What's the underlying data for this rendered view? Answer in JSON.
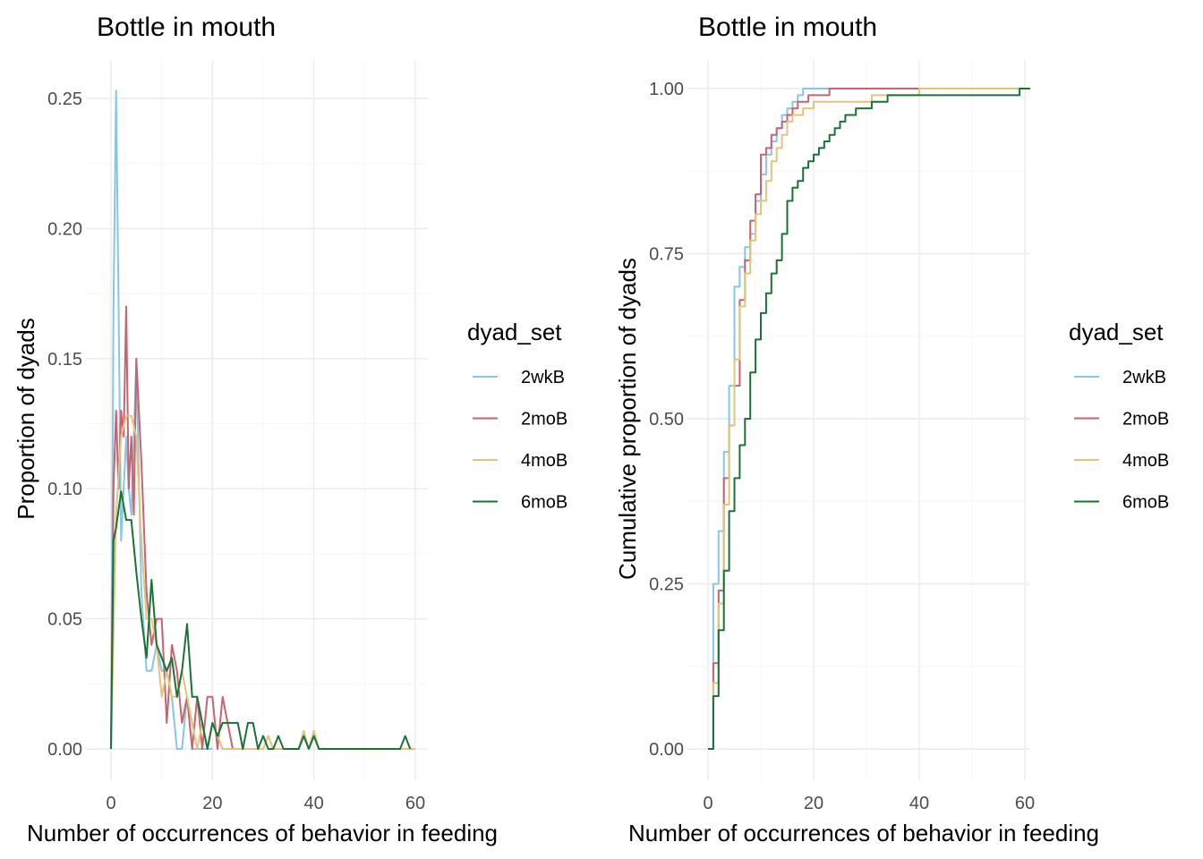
{
  "chart_data": [
    {
      "type": "line",
      "title": "Bottle in mouth",
      "xlabel": "Number of occurrences of behavior in feeding",
      "ylabel": "Proportion of dyads",
      "xlim": [
        0,
        60
      ],
      "ylim": [
        0,
        0.25
      ],
      "x_ticks": [
        "0",
        "20",
        "40",
        "60"
      ],
      "y_ticks": [
        "0.00",
        "0.05",
        "0.10",
        "0.15",
        "0.20",
        "0.25"
      ],
      "grid": true,
      "legend": {
        "title": "dyad_set",
        "position": "right"
      },
      "series": [
        {
          "name": "2wkB",
          "color": "#88c6e5",
          "points": [
            [
              0,
              0.0
            ],
            [
              0.5,
              0.17
            ],
            [
              1,
              0.253
            ],
            [
              1.5,
              0.17
            ],
            [
              2,
              0.08
            ],
            [
              2.5,
              0.1
            ],
            [
              3,
              0.12
            ],
            [
              3.5,
              0.1
            ],
            [
              4,
              0.09
            ],
            [
              5,
              0.15
            ],
            [
              6,
              0.06
            ],
            [
              7,
              0.03
            ],
            [
              8,
              0.03
            ],
            [
              9,
              0.04
            ],
            [
              10,
              0.03
            ],
            [
              11,
              0.03
            ],
            [
              12,
              0.02
            ],
            [
              13,
              0.0
            ],
            [
              14,
              0.0
            ],
            [
              15,
              0.02
            ],
            [
              16,
              0.0
            ],
            [
              17,
              0.0
            ],
            [
              18,
              0.0
            ],
            [
              19,
              0.0
            ],
            [
              20,
              0.0
            ]
          ]
        },
        {
          "name": "2moB",
          "color": "#c8636f",
          "points": [
            [
              0,
              0.0
            ],
            [
              0.5,
              0.1
            ],
            [
              1,
              0.13
            ],
            [
              1.5,
              0.1
            ],
            [
              2,
              0.13
            ],
            [
              2.5,
              0.12
            ],
            [
              3,
              0.17
            ],
            [
              3.5,
              0.1
            ],
            [
              4,
              0.12
            ],
            [
              4.5,
              0.09
            ],
            [
              5,
              0.15
            ],
            [
              6,
              0.11
            ],
            [
              7,
              0.06
            ],
            [
              8,
              0.04
            ],
            [
              9,
              0.05
            ],
            [
              10,
              0.05
            ],
            [
              11,
              0.01
            ],
            [
              12,
              0.04
            ],
            [
              13,
              0.03
            ],
            [
              14,
              0.01
            ],
            [
              15,
              0.02
            ],
            [
              16,
              0.0
            ],
            [
              17,
              0.02
            ],
            [
              18,
              0.0
            ],
            [
              19,
              0.02
            ],
            [
              20,
              0.02
            ],
            [
              21,
              0.0
            ],
            [
              22,
              0.02
            ],
            [
              23,
              0.01
            ],
            [
              24,
              0.0
            ],
            [
              25,
              0.0
            ]
          ]
        },
        {
          "name": "4moB",
          "color": "#e1c57b",
          "points": [
            [
              0,
              0.0
            ],
            [
              1,
              0.09
            ],
            [
              2,
              0.12
            ],
            [
              3,
              0.128
            ],
            [
              4,
              0.128
            ],
            [
              5,
              0.12
            ],
            [
              6,
              0.08
            ],
            [
              7,
              0.05
            ],
            [
              8,
              0.05
            ],
            [
              9,
              0.04
            ],
            [
              10,
              0.02
            ],
            [
              11,
              0.03
            ],
            [
              12,
              0.02
            ],
            [
              13,
              0.02
            ],
            [
              14,
              0.03
            ],
            [
              15,
              0.02
            ],
            [
              16,
              0.01
            ],
            [
              17,
              0.0
            ],
            [
              18,
              0.01
            ],
            [
              19,
              0.0
            ],
            [
              20,
              0.01
            ],
            [
              22,
              0.0
            ],
            [
              30,
              0.0
            ],
            [
              31,
              0.005
            ],
            [
              32,
              0.0
            ],
            [
              37,
              0.0
            ],
            [
              38,
              0.007
            ],
            [
              39,
              0.0
            ],
            [
              40,
              0.007
            ],
            [
              41,
              0.0
            ],
            [
              60,
              0.0
            ]
          ]
        },
        {
          "name": "6moB",
          "color": "#1a7335",
          "points": [
            [
              0,
              0.0
            ],
            [
              0.5,
              0.08
            ],
            [
              1,
              0.085
            ],
            [
              2,
              0.099
            ],
            [
              3,
              0.088
            ],
            [
              4,
              0.088
            ],
            [
              5,
              0.068
            ],
            [
              6,
              0.05
            ],
            [
              7,
              0.035
            ],
            [
              8,
              0.065
            ],
            [
              9,
              0.04
            ],
            [
              10,
              0.035
            ],
            [
              11,
              0.03
            ],
            [
              12,
              0.035
            ],
            [
              13,
              0.02
            ],
            [
              14,
              0.03
            ],
            [
              15,
              0.048
            ],
            [
              16,
              0.02
            ],
            [
              17,
              0.02
            ],
            [
              18,
              0.01
            ],
            [
              19,
              0.0
            ],
            [
              20,
              0.01
            ],
            [
              21,
              0.005
            ],
            [
              22,
              0.01
            ],
            [
              23,
              0.01
            ],
            [
              24,
              0.01
            ],
            [
              25,
              0.01
            ],
            [
              26,
              0.0
            ],
            [
              27,
              0.01
            ],
            [
              28,
              0.01
            ],
            [
              29,
              0.0
            ],
            [
              30,
              0.005
            ],
            [
              31,
              0.0
            ],
            [
              32,
              0.0
            ],
            [
              33,
              0.005
            ],
            [
              34,
              0.0
            ],
            [
              35,
              0.0
            ],
            [
              36,
              0.0
            ],
            [
              37,
              0.0
            ],
            [
              38,
              0.005
            ],
            [
              39,
              0.0
            ],
            [
              40,
              0.005
            ],
            [
              41,
              0.0
            ],
            [
              57,
              0.0
            ],
            [
              58,
              0.005
            ],
            [
              59,
              0.0
            ]
          ]
        }
      ]
    },
    {
      "type": "line",
      "title": "Bottle in mouth",
      "xlabel": "Number of occurrences of behavior in feeding",
      "ylabel": "Cumulative proportion of dyads",
      "xlim": [
        0,
        60
      ],
      "ylim": [
        0,
        1
      ],
      "x_ticks": [
        "0",
        "20",
        "40",
        "60"
      ],
      "y_ticks": [
        "0.00",
        "0.25",
        "0.50",
        "0.75",
        "1.00"
      ],
      "grid": true,
      "step": true,
      "legend": {
        "title": "dyad_set",
        "position": "right"
      },
      "series": [
        {
          "name": "2wkB",
          "color": "#88c6e5",
          "points": [
            [
              0,
              0.0
            ],
            [
              1,
              0.25
            ],
            [
              2,
              0.33
            ],
            [
              3,
              0.45
            ],
            [
              4,
              0.55
            ],
            [
              5,
              0.7
            ],
            [
              6,
              0.73
            ],
            [
              7,
              0.76
            ],
            [
              8,
              0.78
            ],
            [
              9,
              0.83
            ],
            [
              10,
              0.87
            ],
            [
              11,
              0.9
            ],
            [
              12,
              0.92
            ],
            [
              13,
              0.94
            ],
            [
              14,
              0.96
            ],
            [
              15,
              0.97
            ],
            [
              16,
              0.98
            ],
            [
              17,
              0.99
            ],
            [
              18,
              1.0
            ],
            [
              25,
              1.0
            ]
          ]
        },
        {
          "name": "2moB",
          "color": "#c8636f",
          "points": [
            [
              0,
              0.0
            ],
            [
              1,
              0.13
            ],
            [
              2,
              0.24
            ],
            [
              3,
              0.41
            ],
            [
              4,
              0.49
            ],
            [
              5,
              0.55
            ],
            [
              6,
              0.68
            ],
            [
              7,
              0.74
            ],
            [
              8,
              0.8
            ],
            [
              9,
              0.84
            ],
            [
              10,
              0.9
            ],
            [
              11,
              0.91
            ],
            [
              12,
              0.93
            ],
            [
              13,
              0.94
            ],
            [
              14,
              0.95
            ],
            [
              15,
              0.96
            ],
            [
              16,
              0.97
            ],
            [
              17,
              0.98
            ],
            [
              18,
              0.98
            ],
            [
              19,
              0.99
            ],
            [
              22,
              0.99
            ],
            [
              23,
              1.0
            ],
            [
              40,
              1.0
            ]
          ]
        },
        {
          "name": "4moB",
          "color": "#e1c57b",
          "points": [
            [
              0,
              0.0
            ],
            [
              1,
              0.1
            ],
            [
              2,
              0.22
            ],
            [
              3,
              0.37
            ],
            [
              4,
              0.49
            ],
            [
              5,
              0.59
            ],
            [
              6,
              0.67
            ],
            [
              7,
              0.72
            ],
            [
              8,
              0.77
            ],
            [
              9,
              0.81
            ],
            [
              10,
              0.83
            ],
            [
              11,
              0.86
            ],
            [
              12,
              0.89
            ],
            [
              13,
              0.91
            ],
            [
              14,
              0.93
            ],
            [
              15,
              0.95
            ],
            [
              16,
              0.96
            ],
            [
              18,
              0.97
            ],
            [
              20,
              0.98
            ],
            [
              30,
              0.98
            ],
            [
              31,
              0.99
            ],
            [
              38,
              0.99
            ],
            [
              40,
              1.0
            ],
            [
              60,
              1.0
            ]
          ]
        },
        {
          "name": "6moB",
          "color": "#1a7335",
          "points": [
            [
              0,
              0.0
            ],
            [
              1,
              0.08
            ],
            [
              2,
              0.18
            ],
            [
              3,
              0.27
            ],
            [
              4,
              0.36
            ],
            [
              5,
              0.41
            ],
            [
              6,
              0.46
            ],
            [
              7,
              0.5
            ],
            [
              8,
              0.57
            ],
            [
              9,
              0.62
            ],
            [
              10,
              0.66
            ],
            [
              11,
              0.69
            ],
            [
              12,
              0.72
            ],
            [
              13,
              0.74
            ],
            [
              14,
              0.78
            ],
            [
              15,
              0.83
            ],
            [
              16,
              0.85
            ],
            [
              17,
              0.86
            ],
            [
              18,
              0.88
            ],
            [
              19,
              0.89
            ],
            [
              20,
              0.9
            ],
            [
              21,
              0.91
            ],
            [
              22,
              0.92
            ],
            [
              23,
              0.93
            ],
            [
              24,
              0.94
            ],
            [
              25,
              0.95
            ],
            [
              26,
              0.96
            ],
            [
              27,
              0.96
            ],
            [
              28,
              0.97
            ],
            [
              30,
              0.97
            ],
            [
              31,
              0.98
            ],
            [
              33,
              0.98
            ],
            [
              34,
              0.99
            ],
            [
              40,
              0.99
            ],
            [
              41,
              0.99
            ],
            [
              58,
              0.99
            ],
            [
              59,
              1.0
            ],
            [
              61,
              1.0
            ]
          ]
        }
      ]
    }
  ]
}
